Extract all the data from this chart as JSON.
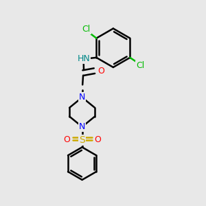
{
  "bg_color": "#e8e8e8",
  "atom_colors": {
    "C": "#000000",
    "N": "#0000ff",
    "O": "#ff0000",
    "S": "#ccaa00",
    "Cl": "#00bb00",
    "H": "#008888"
  },
  "bond_lw": 1.8,
  "font_size": 9
}
